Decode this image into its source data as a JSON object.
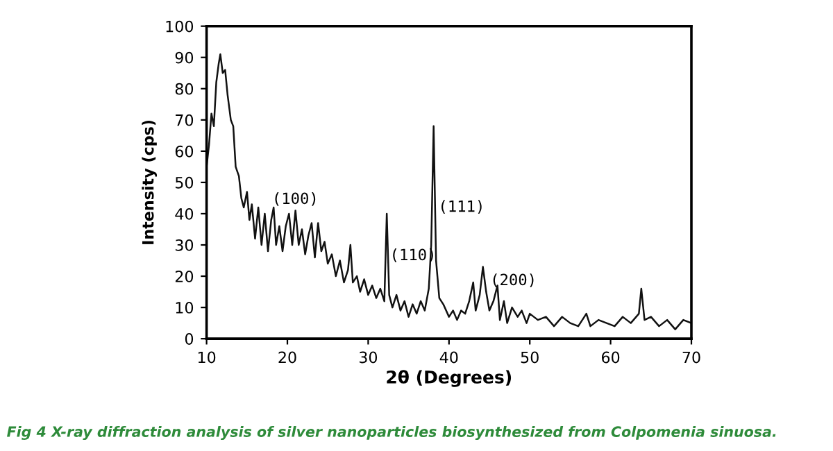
{
  "chart_data": {
    "type": "line",
    "xlabel": "2θ (Degrees)",
    "ylabel": "Intensity (cps)",
    "xlim": [
      10,
      70
    ],
    "ylim": [
      0,
      100
    ],
    "xticks": [
      10,
      20,
      30,
      40,
      50,
      60,
      70
    ],
    "yticks": [
      0,
      10,
      20,
      30,
      40,
      50,
      60,
      70,
      80,
      90,
      100
    ],
    "grid": false,
    "marker": "none",
    "line_style": "solid",
    "series": [
      {
        "color": "#111111",
        "x": [
          10,
          10.3,
          10.6,
          10.9,
          11.2,
          11.5,
          11.7,
          12.0,
          12.3,
          12.6,
          13.0,
          13.3,
          13.6,
          14.0,
          14.3,
          14.6,
          15.0,
          15.3,
          15.6,
          16.0,
          16.4,
          16.8,
          17.2,
          17.6,
          18.0,
          18.3,
          18.6,
          19.0,
          19.4,
          19.8,
          20.2,
          20.6,
          21.0,
          21.4,
          21.8,
          22.2,
          22.6,
          23.0,
          23.4,
          23.8,
          24.2,
          24.6,
          25.0,
          25.5,
          26.0,
          26.5,
          27.0,
          27.5,
          27.8,
          28.1,
          28.6,
          29.0,
          29.5,
          30.0,
          30.5,
          31.0,
          31.5,
          32.0,
          32.3,
          32.6,
          33.0,
          33.5,
          34.0,
          34.5,
          35.0,
          35.5,
          36.0,
          36.5,
          37.0,
          37.5,
          37.8,
          38.1,
          38.4,
          38.8,
          39.3,
          40.0,
          40.5,
          41.0,
          41.5,
          42.0,
          42.5,
          43.0,
          43.3,
          43.8,
          44.2,
          44.6,
          45.0,
          45.5,
          46.0,
          46.3,
          46.8,
          47.2,
          47.8,
          48.5,
          49.0,
          49.6,
          50.0,
          51.0,
          52.0,
          53.0,
          54.0,
          55.0,
          56.0,
          57.0,
          57.5,
          58.5,
          59.5,
          60.5,
          61.5,
          62.5,
          63.5,
          63.8,
          64.2,
          65.0,
          66.0,
          67.0,
          68.0,
          69.0,
          70.0
        ],
        "values": [
          55,
          62,
          72,
          68,
          82,
          88,
          91,
          85,
          86,
          78,
          70,
          68,
          55,
          52,
          45,
          42,
          47,
          38,
          43,
          32,
          42,
          30,
          40,
          28,
          38,
          42,
          30,
          36,
          28,
          36,
          40,
          30,
          41,
          30,
          35,
          27,
          33,
          37,
          26,
          37,
          28,
          31,
          24,
          27,
          20,
          25,
          18,
          22,
          30,
          18,
          20,
          15,
          19,
          14,
          17,
          13,
          16,
          12,
          40,
          14,
          10,
          14,
          9,
          12,
          7,
          11,
          8,
          12,
          9,
          16,
          30,
          68,
          25,
          13,
          11,
          7,
          9,
          6,
          9,
          8,
          12,
          18,
          9,
          14,
          23,
          15,
          9,
          12,
          17,
          6,
          12,
          5,
          10,
          7,
          9,
          5,
          8,
          6,
          7,
          4,
          7,
          5,
          4,
          8,
          4,
          6,
          5,
          4,
          7,
          5,
          8,
          16,
          6,
          7,
          4,
          6,
          3,
          6,
          5
        ]
      }
    ],
    "annotations": [
      "(100)",
      "(110)",
      "(111)",
      "(200)",
      "Fig 4 X-ray diffraction analysis of silver nanoparticles biosynthesized from Colpomenia sinuosa."
    ]
  }
}
